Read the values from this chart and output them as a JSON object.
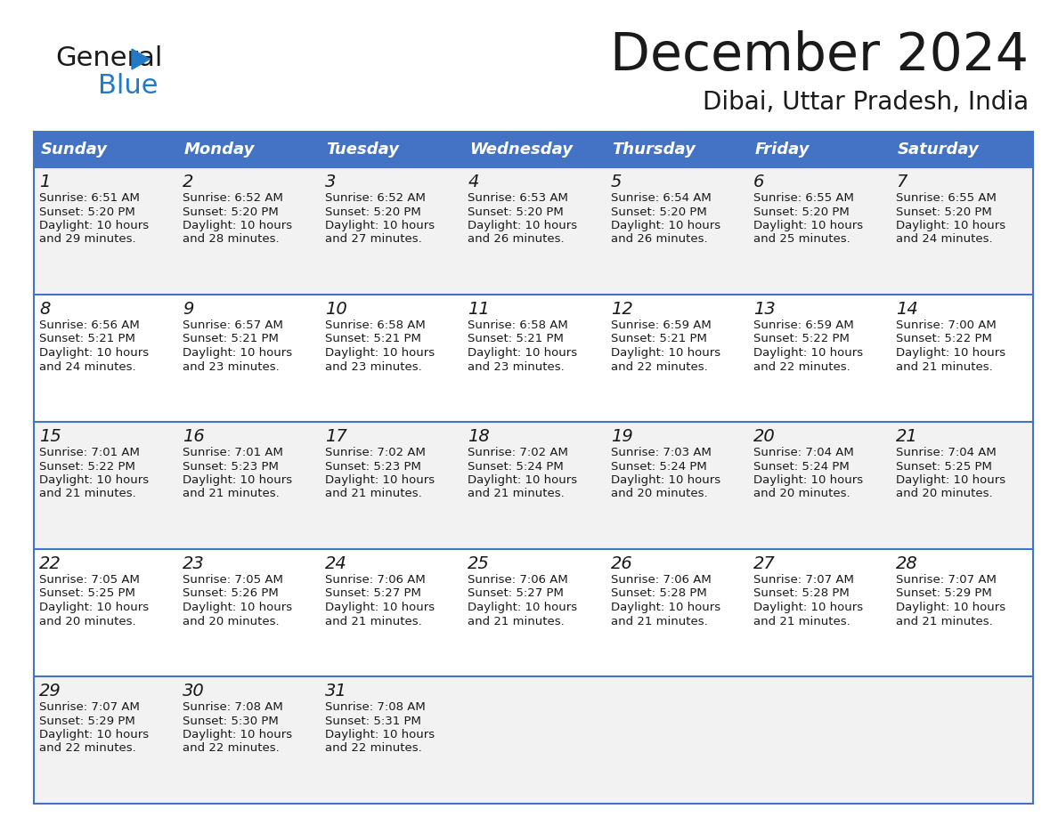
{
  "title": "December 2024",
  "subtitle": "Dibai, Uttar Pradesh, India",
  "header_bg": "#4472C4",
  "header_text_color": "#FFFFFF",
  "cell_bg_even": "#FFFFFF",
  "cell_bg_odd": "#F2F2F2",
  "border_color": "#4472C4",
  "days_of_week": [
    "Sunday",
    "Monday",
    "Tuesday",
    "Wednesday",
    "Thursday",
    "Friday",
    "Saturday"
  ],
  "calendar_data": [
    [
      {
        "day": 1,
        "sunrise": "6:51 AM",
        "sunset": "5:20 PM",
        "daylight_hours": 10,
        "daylight_minutes": 29
      },
      {
        "day": 2,
        "sunrise": "6:52 AM",
        "sunset": "5:20 PM",
        "daylight_hours": 10,
        "daylight_minutes": 28
      },
      {
        "day": 3,
        "sunrise": "6:52 AM",
        "sunset": "5:20 PM",
        "daylight_hours": 10,
        "daylight_minutes": 27
      },
      {
        "day": 4,
        "sunrise": "6:53 AM",
        "sunset": "5:20 PM",
        "daylight_hours": 10,
        "daylight_minutes": 26
      },
      {
        "day": 5,
        "sunrise": "6:54 AM",
        "sunset": "5:20 PM",
        "daylight_hours": 10,
        "daylight_minutes": 26
      },
      {
        "day": 6,
        "sunrise": "6:55 AM",
        "sunset": "5:20 PM",
        "daylight_hours": 10,
        "daylight_minutes": 25
      },
      {
        "day": 7,
        "sunrise": "6:55 AM",
        "sunset": "5:20 PM",
        "daylight_hours": 10,
        "daylight_minutes": 24
      }
    ],
    [
      {
        "day": 8,
        "sunrise": "6:56 AM",
        "sunset": "5:21 PM",
        "daylight_hours": 10,
        "daylight_minutes": 24
      },
      {
        "day": 9,
        "sunrise": "6:57 AM",
        "sunset": "5:21 PM",
        "daylight_hours": 10,
        "daylight_minutes": 23
      },
      {
        "day": 10,
        "sunrise": "6:58 AM",
        "sunset": "5:21 PM",
        "daylight_hours": 10,
        "daylight_minutes": 23
      },
      {
        "day": 11,
        "sunrise": "6:58 AM",
        "sunset": "5:21 PM",
        "daylight_hours": 10,
        "daylight_minutes": 23
      },
      {
        "day": 12,
        "sunrise": "6:59 AM",
        "sunset": "5:21 PM",
        "daylight_hours": 10,
        "daylight_minutes": 22
      },
      {
        "day": 13,
        "sunrise": "6:59 AM",
        "sunset": "5:22 PM",
        "daylight_hours": 10,
        "daylight_minutes": 22
      },
      {
        "day": 14,
        "sunrise": "7:00 AM",
        "sunset": "5:22 PM",
        "daylight_hours": 10,
        "daylight_minutes": 21
      }
    ],
    [
      {
        "day": 15,
        "sunrise": "7:01 AM",
        "sunset": "5:22 PM",
        "daylight_hours": 10,
        "daylight_minutes": 21
      },
      {
        "day": 16,
        "sunrise": "7:01 AM",
        "sunset": "5:23 PM",
        "daylight_hours": 10,
        "daylight_minutes": 21
      },
      {
        "day": 17,
        "sunrise": "7:02 AM",
        "sunset": "5:23 PM",
        "daylight_hours": 10,
        "daylight_minutes": 21
      },
      {
        "day": 18,
        "sunrise": "7:02 AM",
        "sunset": "5:24 PM",
        "daylight_hours": 10,
        "daylight_minutes": 21
      },
      {
        "day": 19,
        "sunrise": "7:03 AM",
        "sunset": "5:24 PM",
        "daylight_hours": 10,
        "daylight_minutes": 20
      },
      {
        "day": 20,
        "sunrise": "7:04 AM",
        "sunset": "5:24 PM",
        "daylight_hours": 10,
        "daylight_minutes": 20
      },
      {
        "day": 21,
        "sunrise": "7:04 AM",
        "sunset": "5:25 PM",
        "daylight_hours": 10,
        "daylight_minutes": 20
      }
    ],
    [
      {
        "day": 22,
        "sunrise": "7:05 AM",
        "sunset": "5:25 PM",
        "daylight_hours": 10,
        "daylight_minutes": 20
      },
      {
        "day": 23,
        "sunrise": "7:05 AM",
        "sunset": "5:26 PM",
        "daylight_hours": 10,
        "daylight_minutes": 20
      },
      {
        "day": 24,
        "sunrise": "7:06 AM",
        "sunset": "5:27 PM",
        "daylight_hours": 10,
        "daylight_minutes": 21
      },
      {
        "day": 25,
        "sunrise": "7:06 AM",
        "sunset": "5:27 PM",
        "daylight_hours": 10,
        "daylight_minutes": 21
      },
      {
        "day": 26,
        "sunrise": "7:06 AM",
        "sunset": "5:28 PM",
        "daylight_hours": 10,
        "daylight_minutes": 21
      },
      {
        "day": 27,
        "sunrise": "7:07 AM",
        "sunset": "5:28 PM",
        "daylight_hours": 10,
        "daylight_minutes": 21
      },
      {
        "day": 28,
        "sunrise": "7:07 AM",
        "sunset": "5:29 PM",
        "daylight_hours": 10,
        "daylight_minutes": 21
      }
    ],
    [
      {
        "day": 29,
        "sunrise": "7:07 AM",
        "sunset": "5:29 PM",
        "daylight_hours": 10,
        "daylight_minutes": 22
      },
      {
        "day": 30,
        "sunrise": "7:08 AM",
        "sunset": "5:30 PM",
        "daylight_hours": 10,
        "daylight_minutes": 22
      },
      {
        "day": 31,
        "sunrise": "7:08 AM",
        "sunset": "5:31 PM",
        "daylight_hours": 10,
        "daylight_minutes": 22
      },
      null,
      null,
      null,
      null
    ]
  ],
  "logo_color_general": "#1a1a1a",
  "logo_color_blue": "#2479c7",
  "logo_triangle_color": "#2479c7",
  "title_fontsize": 42,
  "subtitle_fontsize": 20,
  "header_fontsize": 13,
  "day_num_fontsize": 14,
  "cell_text_fontsize": 9.5
}
